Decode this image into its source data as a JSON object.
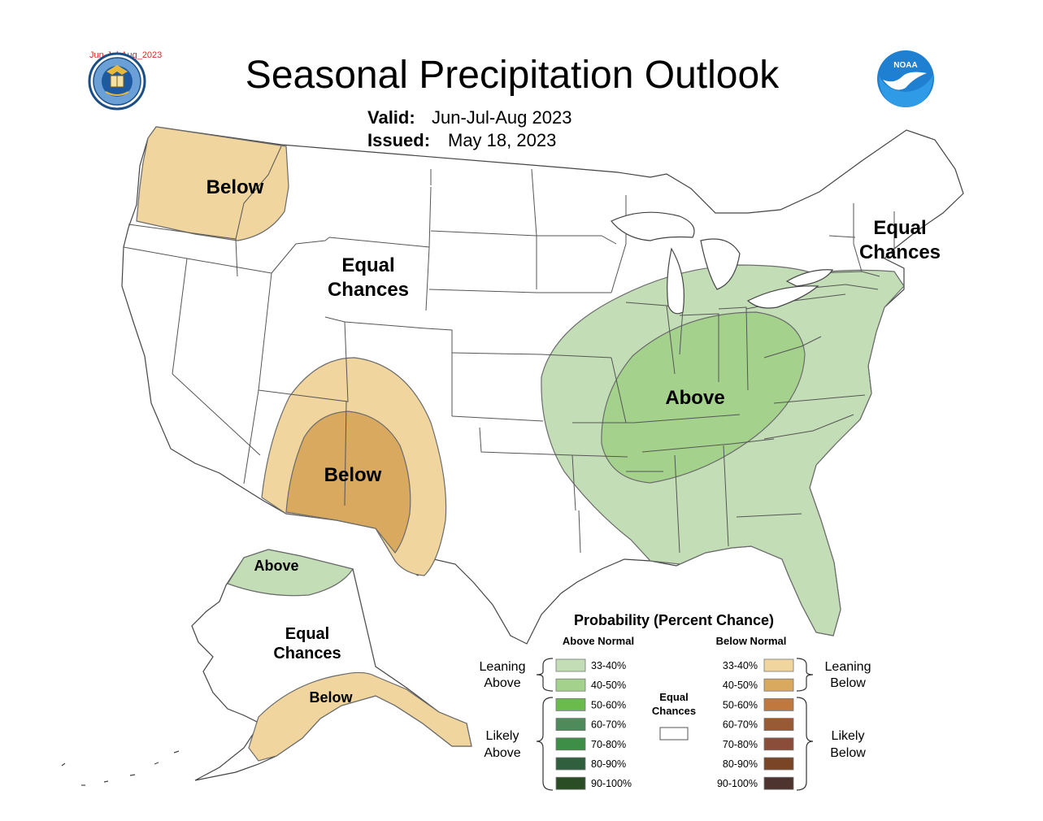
{
  "corner_label": "Jun-Jul-Aug_2023",
  "title": "Seasonal Precipitation Outlook",
  "valid": {
    "label": "Valid:",
    "value": "Jun-Jul-Aug 2023"
  },
  "issued": {
    "label": "Issued:",
    "value": "May 18, 2023"
  },
  "logos": {
    "left_icon": "doc-seal-icon",
    "right_icon": "noaa-logo-icon",
    "noaa_text": "NOAA"
  },
  "regions": {
    "northwest_label": "Below",
    "west_ec_line1": "Equal",
    "west_ec_line2": "Chances",
    "southwest_label": "Below",
    "east_label": "Above",
    "northeast_ec_line1": "Equal",
    "northeast_ec_line2": "Chances",
    "alaska_north_label": "Above",
    "alaska_ec_line1": "Equal",
    "alaska_ec_line2": "Chances",
    "alaska_south_label": "Below"
  },
  "legend": {
    "title": "Probability (Percent Chance)",
    "above_header": "Above Normal",
    "below_header": "Below Normal",
    "leaning_above": [
      "Leaning",
      "Above"
    ],
    "likely_above": [
      "Likely",
      "Above"
    ],
    "leaning_below": [
      "Leaning",
      "Below"
    ],
    "likely_below": [
      "Likely",
      "Below"
    ],
    "equal_chances": [
      "Equal",
      "Chances"
    ],
    "above_items": [
      {
        "label": "33-40%",
        "color": "#c3deb6"
      },
      {
        "label": "40-50%",
        "color": "#a4d28d"
      },
      {
        "label": "50-60%",
        "color": "#6bbb4c"
      },
      {
        "label": "60-70%",
        "color": "#4f8a5a"
      },
      {
        "label": "70-80%",
        "color": "#3e8e47"
      },
      {
        "label": "80-90%",
        "color": "#2f5f3c"
      },
      {
        "label": "90-100%",
        "color": "#2a4d25"
      }
    ],
    "below_items": [
      {
        "label": "33-40%",
        "color": "#f0d59e"
      },
      {
        "label": "40-50%",
        "color": "#d8a95e"
      },
      {
        "label": "50-60%",
        "color": "#c0783f"
      },
      {
        "label": "60-70%",
        "color": "#975a34"
      },
      {
        "label": "70-80%",
        "color": "#8a4d3a"
      },
      {
        "label": "80-90%",
        "color": "#7a4527"
      },
      {
        "label": "90-100%",
        "color": "#4e342e"
      }
    ]
  },
  "colors": {
    "above_33_40": "#c3deb6",
    "above_40_50": "#a4d28d",
    "below_33_40": "#f0d59e",
    "below_40_50": "#d8a95e",
    "corner_label": "#d62b2b",
    "noaa_blue": "#1f7fd1"
  }
}
